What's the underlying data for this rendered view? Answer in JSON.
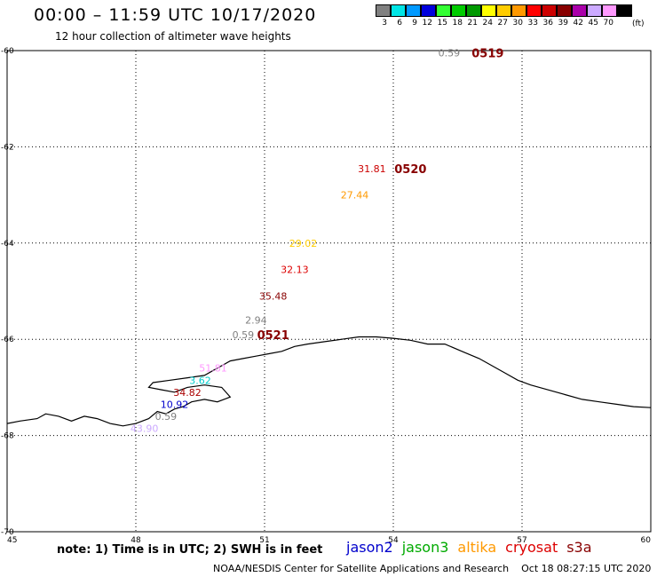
{
  "header": {
    "title": "00:00 – 11:59 UTC 10/17/2020",
    "subtitle": "12 hour collection of altimeter wave heights"
  },
  "colorbar": {
    "unit": "(ft)",
    "bins": [
      {
        "label": "3",
        "color": "#808080"
      },
      {
        "label": "6",
        "color": "#00e5e5"
      },
      {
        "label": "9",
        "color": "#0099ff"
      },
      {
        "label": "12",
        "color": "#0000dd"
      },
      {
        "label": "15",
        "color": "#33ff33"
      },
      {
        "label": "18",
        "color": "#00cc00"
      },
      {
        "label": "21",
        "color": "#009900"
      },
      {
        "label": "24",
        "color": "#ffff00"
      },
      {
        "label": "27",
        "color": "#ffcc00"
      },
      {
        "label": "30",
        "color": "#ff9900"
      },
      {
        "label": "33",
        "color": "#ff0000"
      },
      {
        "label": "36",
        "color": "#cc0000"
      },
      {
        "label": "39",
        "color": "#880000"
      },
      {
        "label": "42",
        "color": "#aa00aa"
      },
      {
        "label": "45",
        "color": "#ccaaff"
      },
      {
        "label": "70",
        "color": "#ff99ff"
      },
      {
        "label": "",
        "color": "#000000"
      }
    ]
  },
  "footer": {
    "note": "note: 1) Time is in UTC; 2) SWH is in feet",
    "missions": [
      {
        "name": "jason2",
        "color": "#0000cc"
      },
      {
        "name": "jason3",
        "color": "#00aa00"
      },
      {
        "name": "altika",
        "color": "#ff9900"
      },
      {
        "name": "cryosat",
        "color": "#dd0000"
      },
      {
        "name": "s3a",
        "color": "#880000"
      }
    ],
    "credit": "NOAA/NESDIS Center for Satellite Applications and Research",
    "timestamp": "Oct 18 08:27:15 UTC 2020"
  },
  "chart_data": {
    "type": "scatter",
    "xlim": [
      45,
      60
    ],
    "ylim": [
      -70,
      -60
    ],
    "x_ticks": [
      {
        "value": 45,
        "label": "45"
      },
      {
        "value": 48,
        "label": "48"
      },
      {
        "value": 51,
        "label": "51"
      },
      {
        "value": 54,
        "label": "54"
      },
      {
        "value": 57,
        "label": "57"
      },
      {
        "value": 60,
        "label": "60"
      }
    ],
    "y_ticks": [
      {
        "value": -60,
        "label": "-60"
      },
      {
        "value": -62,
        "label": "-62"
      },
      {
        "value": -64,
        "label": "-64"
      },
      {
        "value": -66,
        "label": "-66"
      },
      {
        "value": -68,
        "label": "-68"
      },
      {
        "value": -70,
        "label": "-70"
      }
    ],
    "grid": true,
    "wave_heights": [
      {
        "lon": 55.3,
        "lat": -60.05,
        "label": "0.59",
        "color": "#808080"
      },
      {
        "lon": 53.5,
        "lat": -62.45,
        "label": "31.81",
        "color": "#cc0000"
      },
      {
        "lon": 53.1,
        "lat": -63.0,
        "label": "27.44",
        "color": "#ff9900"
      },
      {
        "lon": 51.9,
        "lat": -64.0,
        "label": "29.02",
        "color": "#ffcc00"
      },
      {
        "lon": 51.7,
        "lat": -64.55,
        "label": "32.13",
        "color": "#dd0000"
      },
      {
        "lon": 51.2,
        "lat": -65.1,
        "label": "35.48",
        "color": "#880000"
      },
      {
        "lon": 50.8,
        "lat": -65.6,
        "label": "2.94",
        "color": "#808080"
      },
      {
        "lon": 50.5,
        "lat": -65.9,
        "label": "0.59",
        "color": "#808080"
      },
      {
        "lon": 49.8,
        "lat": -66.6,
        "label": "51.81",
        "color": "#ff99ff"
      },
      {
        "lon": 49.5,
        "lat": -66.85,
        "label": "3.62",
        "color": "#00cccc"
      },
      {
        "lon": 49.2,
        "lat": -67.1,
        "label": "34.82",
        "color": "#aa0000"
      },
      {
        "lon": 48.9,
        "lat": -67.35,
        "label": "10.92",
        "color": "#0000cc"
      },
      {
        "lon": 48.7,
        "lat": -67.6,
        "label": "0.59",
        "color": "#808080"
      },
      {
        "lon": 48.2,
        "lat": -67.85,
        "label": "43.90",
        "color": "#ccaaff"
      }
    ],
    "pass_times": [
      {
        "lon": 56.2,
        "lat": -60.05,
        "label": "0519",
        "color": "#880000"
      },
      {
        "lon": 54.4,
        "lat": -62.45,
        "label": "0520",
        "color": "#880000"
      },
      {
        "lon": 51.2,
        "lat": -65.9,
        "label": "0521",
        "color": "#880000"
      }
    ],
    "coastline": [
      [
        45.0,
        -67.75
      ],
      [
        45.3,
        -67.7
      ],
      [
        45.7,
        -67.65
      ],
      [
        45.9,
        -67.55
      ],
      [
        46.2,
        -67.6
      ],
      [
        46.5,
        -67.7
      ],
      [
        46.8,
        -67.6
      ],
      [
        47.1,
        -67.65
      ],
      [
        47.4,
        -67.75
      ],
      [
        47.7,
        -67.8
      ],
      [
        48.0,
        -67.75
      ],
      [
        48.3,
        -67.65
      ],
      [
        48.5,
        -67.5
      ],
      [
        48.7,
        -67.55
      ],
      [
        48.9,
        -67.45
      ],
      [
        49.1,
        -67.4
      ],
      [
        49.3,
        -67.3
      ],
      [
        49.6,
        -67.25
      ],
      [
        49.9,
        -67.3
      ],
      [
        50.2,
        -67.2
      ],
      [
        50.0,
        -67.0
      ],
      [
        49.6,
        -66.95
      ],
      [
        49.2,
        -67.0
      ],
      [
        48.9,
        -67.1
      ],
      [
        48.6,
        -67.05
      ],
      [
        48.3,
        -67.0
      ],
      [
        48.4,
        -66.9
      ],
      [
        48.8,
        -66.85
      ],
      [
        49.2,
        -66.8
      ],
      [
        49.6,
        -66.75
      ],
      [
        49.9,
        -66.6
      ],
      [
        50.2,
        -66.45
      ],
      [
        50.5,
        -66.4
      ],
      [
        50.8,
        -66.35
      ],
      [
        51.1,
        -66.3
      ],
      [
        51.4,
        -66.25
      ],
      [
        51.7,
        -66.15
      ],
      [
        52.0,
        -66.1
      ],
      [
        52.4,
        -66.05
      ],
      [
        52.8,
        -66.0
      ],
      [
        53.2,
        -65.95
      ],
      [
        53.6,
        -65.95
      ],
      [
        54.0,
        -65.98
      ],
      [
        54.4,
        -66.02
      ],
      [
        54.8,
        -66.1
      ],
      [
        55.2,
        -66.1
      ],
      [
        55.6,
        -66.25
      ],
      [
        56.0,
        -66.4
      ],
      [
        56.3,
        -66.55
      ],
      [
        56.6,
        -66.7
      ],
      [
        56.9,
        -66.85
      ],
      [
        57.2,
        -66.95
      ],
      [
        57.6,
        -67.05
      ],
      [
        58.0,
        -67.15
      ],
      [
        58.4,
        -67.25
      ],
      [
        58.8,
        -67.3
      ],
      [
        59.2,
        -67.35
      ],
      [
        59.6,
        -67.4
      ],
      [
        60.0,
        -67.42
      ]
    ]
  }
}
